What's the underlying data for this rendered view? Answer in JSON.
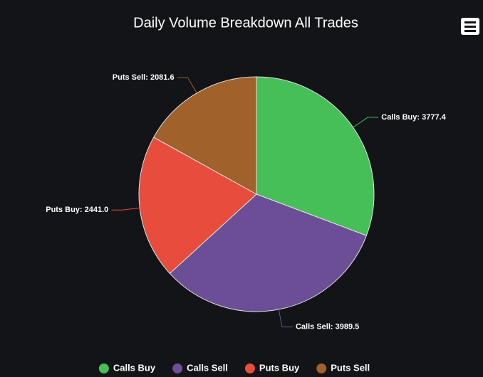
{
  "chart_data": {
    "type": "pie",
    "title": "Daily Volume Breakdown All Trades",
    "categories": [
      "Calls Buy",
      "Calls Sell",
      "Puts Buy",
      "Puts Sell"
    ],
    "values": [
      3777.4,
      3989.5,
      2441.0,
      2081.6
    ],
    "value_labels": [
      "Calls Buy: 3777.4",
      "Calls Sell: 3989.5",
      "Puts Buy: 2441.0",
      "Puts Sell: 2081.6"
    ],
    "colors": [
      "#47bf58",
      "#6c4e97",
      "#e74c3c",
      "#a0612a"
    ],
    "legend": "bottom"
  }
}
